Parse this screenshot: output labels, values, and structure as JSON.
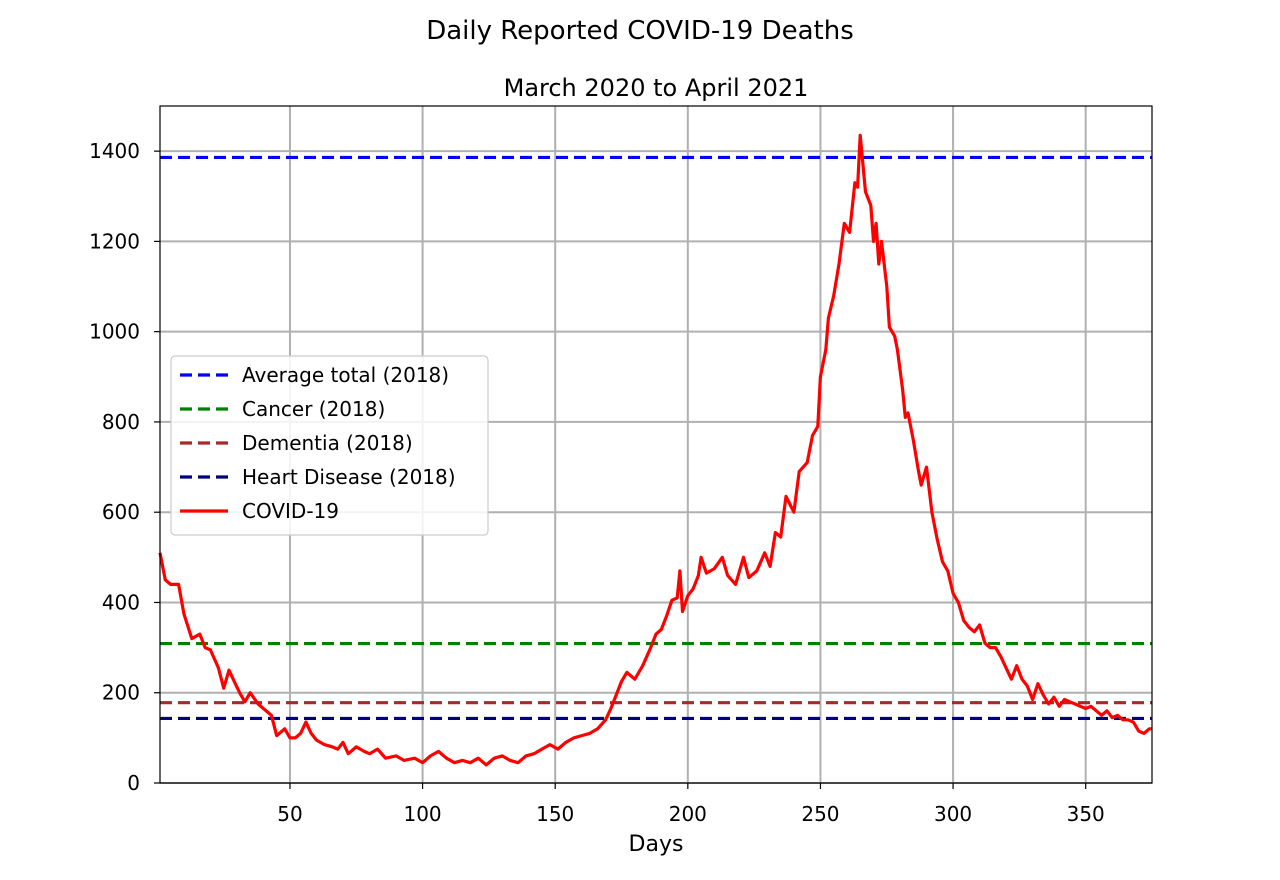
{
  "chart_data": {
    "type": "line",
    "title": "Daily Reported COVID-19 Deaths",
    "subtitle": "March 2020 to April 2021",
    "xlabel": "Days",
    "ylabel": "",
    "xlim": [
      1,
      375
    ],
    "ylim": [
      0,
      1500
    ],
    "xticks": [
      50,
      100,
      150,
      200,
      250,
      300,
      350
    ],
    "yticks": [
      0,
      200,
      400,
      600,
      800,
      1000,
      1200,
      1400
    ],
    "grid": true,
    "legend_position": "center-left",
    "reference_lines": [
      {
        "name": "Average total (2018)",
        "value": 1386,
        "color": "#0000ff",
        "style": "dashed"
      },
      {
        "name": "Cancer (2018)",
        "value": 309,
        "color": "#008000",
        "style": "dashed"
      },
      {
        "name": "Dementia (2018)",
        "value": 178,
        "color": "#a52a2a",
        "style": "dashed"
      },
      {
        "name": "Heart Disease (2018)",
        "value": 143,
        "color": "#000080",
        "style": "dashed"
      }
    ],
    "series": [
      {
        "name": "COVID-19",
        "color": "#ff0000",
        "style": "solid",
        "points": [
          [
            1,
            510
          ],
          [
            3,
            450
          ],
          [
            5,
            440
          ],
          [
            8,
            440
          ],
          [
            10,
            375
          ],
          [
            13,
            320
          ],
          [
            16,
            330
          ],
          [
            18,
            300
          ],
          [
            20,
            295
          ],
          [
            23,
            255
          ],
          [
            25,
            210
          ],
          [
            27,
            250
          ],
          [
            29,
            225
          ],
          [
            31,
            200
          ],
          [
            33,
            180
          ],
          [
            35,
            200
          ],
          [
            38,
            175
          ],
          [
            40,
            165
          ],
          [
            43,
            150
          ],
          [
            45,
            105
          ],
          [
            48,
            120
          ],
          [
            50,
            100
          ],
          [
            52,
            100
          ],
          [
            54,
            110
          ],
          [
            56,
            135
          ],
          [
            58,
            110
          ],
          [
            60,
            95
          ],
          [
            63,
            85
          ],
          [
            66,
            80
          ],
          [
            68,
            75
          ],
          [
            70,
            90
          ],
          [
            72,
            65
          ],
          [
            75,
            80
          ],
          [
            78,
            70
          ],
          [
            80,
            65
          ],
          [
            83,
            75
          ],
          [
            86,
            55
          ],
          [
            90,
            60
          ],
          [
            93,
            50
          ],
          [
            97,
            55
          ],
          [
            100,
            45
          ],
          [
            103,
            60
          ],
          [
            106,
            70
          ],
          [
            109,
            55
          ],
          [
            112,
            45
          ],
          [
            115,
            50
          ],
          [
            118,
            45
          ],
          [
            121,
            55
          ],
          [
            124,
            40
          ],
          [
            127,
            55
          ],
          [
            130,
            60
          ],
          [
            133,
            50
          ],
          [
            136,
            45
          ],
          [
            139,
            60
          ],
          [
            142,
            65
          ],
          [
            145,
            75
          ],
          [
            148,
            85
          ],
          [
            151,
            75
          ],
          [
            154,
            90
          ],
          [
            157,
            100
          ],
          [
            160,
            105
          ],
          [
            163,
            110
          ],
          [
            166,
            120
          ],
          [
            169,
            140
          ],
          [
            171,
            165
          ],
          [
            173,
            195
          ],
          [
            175,
            225
          ],
          [
            177,
            245
          ],
          [
            180,
            230
          ],
          [
            183,
            260
          ],
          [
            186,
            300
          ],
          [
            188,
            330
          ],
          [
            190,
            340
          ],
          [
            192,
            370
          ],
          [
            194,
            405
          ],
          [
            196,
            410
          ],
          [
            197,
            470
          ],
          [
            198,
            380
          ],
          [
            200,
            415
          ],
          [
            202,
            430
          ],
          [
            204,
            460
          ],
          [
            205,
            500
          ],
          [
            207,
            465
          ],
          [
            210,
            475
          ],
          [
            213,
            500
          ],
          [
            215,
            460
          ],
          [
            218,
            440
          ],
          [
            221,
            500
          ],
          [
            223,
            455
          ],
          [
            226,
            470
          ],
          [
            229,
            510
          ],
          [
            231,
            480
          ],
          [
            233,
            555
          ],
          [
            235,
            545
          ],
          [
            237,
            635
          ],
          [
            240,
            600
          ],
          [
            242,
            690
          ],
          [
            245,
            710
          ],
          [
            247,
            770
          ],
          [
            249,
            790
          ],
          [
            250,
            900
          ],
          [
            252,
            960
          ],
          [
            253,
            1030
          ],
          [
            255,
            1080
          ],
          [
            257,
            1150
          ],
          [
            259,
            1240
          ],
          [
            261,
            1220
          ],
          [
            263,
            1330
          ],
          [
            264,
            1320
          ],
          [
            265,
            1435
          ],
          [
            267,
            1310
          ],
          [
            269,
            1280
          ],
          [
            270,
            1200
          ],
          [
            271,
            1240
          ],
          [
            272,
            1150
          ],
          [
            273,
            1200
          ],
          [
            275,
            1100
          ],
          [
            276,
            1010
          ],
          [
            278,
            990
          ],
          [
            279,
            960
          ],
          [
            281,
            870
          ],
          [
            282,
            810
          ],
          [
            283,
            820
          ],
          [
            285,
            760
          ],
          [
            287,
            690
          ],
          [
            288,
            660
          ],
          [
            290,
            700
          ],
          [
            292,
            600
          ],
          [
            294,
            540
          ],
          [
            296,
            490
          ],
          [
            298,
            470
          ],
          [
            300,
            420
          ],
          [
            302,
            400
          ],
          [
            304,
            360
          ],
          [
            306,
            345
          ],
          [
            308,
            335
          ],
          [
            310,
            350
          ],
          [
            312,
            310
          ],
          [
            314,
            300
          ],
          [
            316,
            300
          ],
          [
            318,
            280
          ],
          [
            320,
            255
          ],
          [
            322,
            230
          ],
          [
            324,
            260
          ],
          [
            326,
            230
          ],
          [
            328,
            215
          ],
          [
            330,
            185
          ],
          [
            332,
            220
          ],
          [
            334,
            195
          ],
          [
            336,
            175
          ],
          [
            338,
            190
          ],
          [
            340,
            170
          ],
          [
            342,
            185
          ],
          [
            344,
            180
          ],
          [
            346,
            175
          ],
          [
            348,
            170
          ],
          [
            350,
            165
          ],
          [
            352,
            170
          ],
          [
            354,
            160
          ],
          [
            356,
            150
          ],
          [
            358,
            160
          ],
          [
            360,
            145
          ],
          [
            362,
            150
          ],
          [
            364,
            140
          ],
          [
            366,
            140
          ],
          [
            368,
            135
          ],
          [
            370,
            115
          ],
          [
            372,
            110
          ],
          [
            374,
            120
          ],
          [
            375,
            120
          ]
        ]
      }
    ]
  }
}
